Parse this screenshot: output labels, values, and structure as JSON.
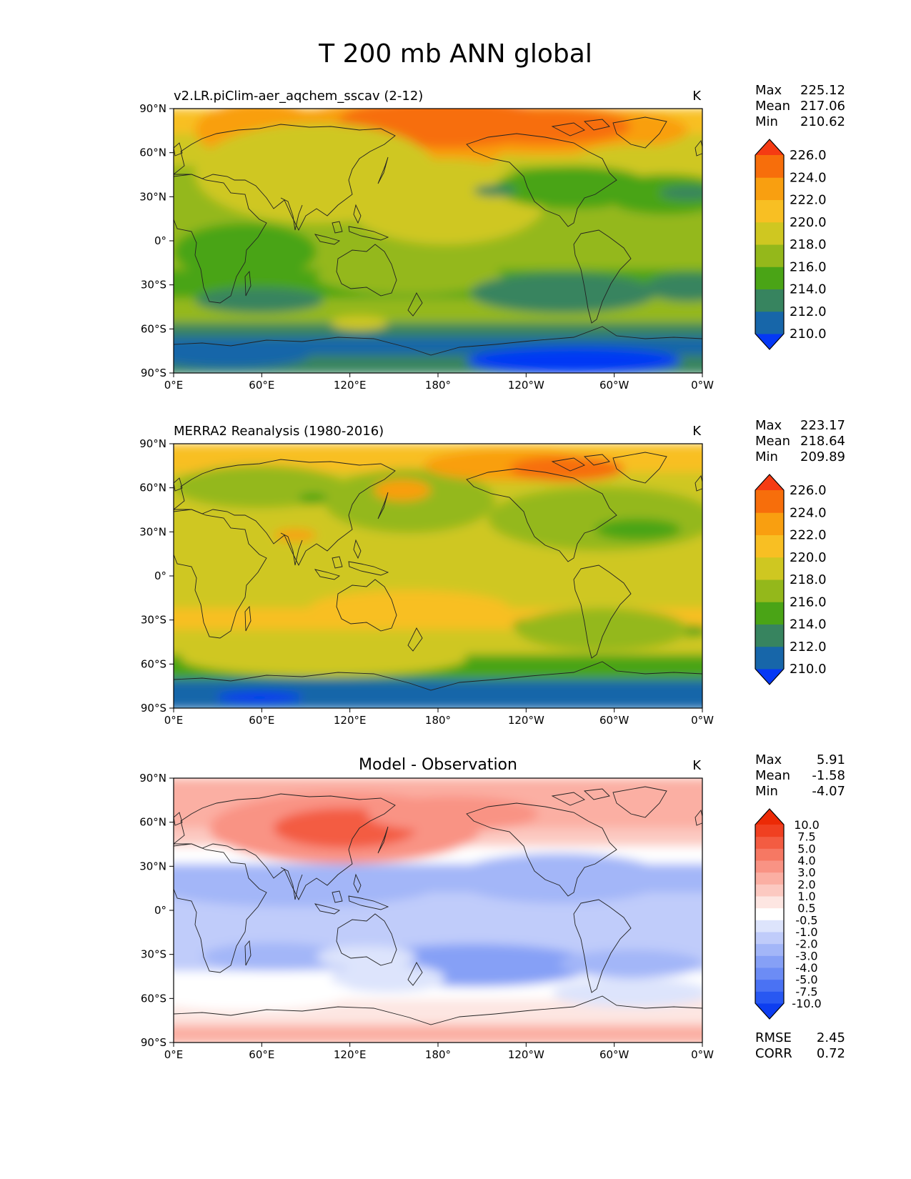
{
  "title": "T 200 mb ANN global",
  "lat_ticks": [
    "90°N",
    "60°N",
    "30°N",
    "0°",
    "30°S",
    "60°S",
    "90°S"
  ],
  "lon_ticks": [
    "0°E",
    "60°E",
    "120°E",
    "180°",
    "120°W",
    "60°W",
    "0°W"
  ],
  "colors": {
    "temp_scale": [
      "#0538f5",
      "#1766a9",
      "#37845f",
      "#4aa416",
      "#94b81b",
      "#cfc721",
      "#f8bf23",
      "#f99f10",
      "#f76e0b",
      "#f53b13"
    ],
    "diff_scale": [
      "#0d3df0",
      "#2858f2",
      "#4a72f3",
      "#6c8cf5",
      "#86a0f6",
      "#a3b6f8",
      "#c0ccfa",
      "#dde4fc",
      "#ffffff",
      "#fde6e2",
      "#fcc9c1",
      "#fbafa3",
      "#f99384",
      "#f67863",
      "#f35c42",
      "#f04021",
      "#ec2a06"
    ]
  },
  "panels": [
    {
      "name": "test",
      "subtitle": "v2.LR.piClim-aer_aqchem_sscav (2-12)",
      "units": "K",
      "stats": {
        "max_label": "Max",
        "max": "225.12",
        "mean_label": "Mean",
        "mean": "217.06",
        "min_label": "Min",
        "min": "210.62"
      },
      "colorbar_labels": [
        "210.0",
        "212.0",
        "214.0",
        "216.0",
        "218.0",
        "220.0",
        "222.0",
        "224.0",
        "226.0"
      ]
    },
    {
      "name": "reference",
      "subtitle": "MERRA2 Reanalysis (1980-2016)",
      "units": "K",
      "stats": {
        "max_label": "Max",
        "max": "223.17",
        "mean_label": "Mean",
        "mean": "218.64",
        "min_label": "Min",
        "min": "209.89"
      },
      "colorbar_labels": [
        "210.0",
        "212.0",
        "214.0",
        "216.0",
        "218.0",
        "220.0",
        "222.0",
        "224.0",
        "226.0"
      ]
    },
    {
      "name": "difference",
      "subtitle": "Model - Observation",
      "units": "K",
      "stats": {
        "max_label": "Max",
        "max": "5.91",
        "mean_label": "Mean",
        "mean": "-1.58",
        "min_label": "Min",
        "min": "-4.07"
      },
      "colorbar_labels": [
        "-10.0",
        "-7.5",
        "-5.0",
        "-4.0",
        "-3.0",
        "-2.0",
        "-1.0",
        "-0.5",
        "0.5",
        "1.0",
        "2.0",
        "3.0",
        "4.0",
        "5.0",
        "7.5",
        "10.0"
      ],
      "extra": {
        "rmse_label": "RMSE",
        "rmse": "2.45",
        "corr_label": "CORR",
        "corr": "0.72"
      }
    }
  ]
}
